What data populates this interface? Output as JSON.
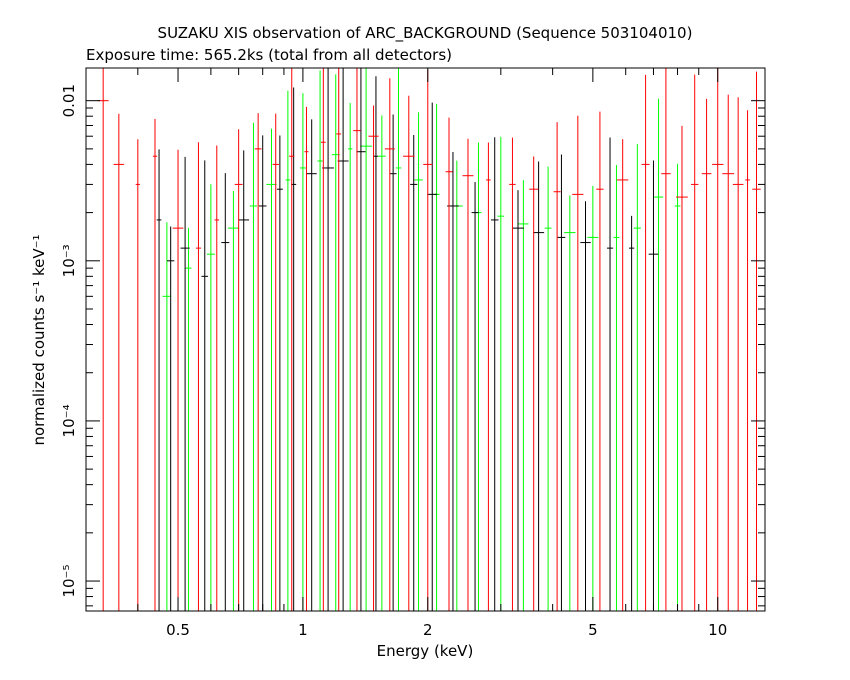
{
  "chart_data": {
    "type": "scatter",
    "title": "SUZAKU XIS observation of ARC_BACKGROUND (Sequence 503104010)",
    "subtitle": "Exposure time: 565.2ks (total from all detectors)",
    "xlabel": "Energy (keV)",
    "ylabel": "normalized counts s⁻¹ keV⁻¹",
    "xscale": "log",
    "yscale": "log",
    "xlim": [
      0.3,
      13
    ],
    "ylim": [
      6.5e-06,
      0.016
    ],
    "x_ticks": [
      {
        "value": 0.5,
        "label": "0.5"
      },
      {
        "value": 1,
        "label": "1"
      },
      {
        "value": 2,
        "label": "2"
      },
      {
        "value": 5,
        "label": "5"
      },
      {
        "value": 10,
        "label": "10"
      }
    ],
    "y_ticks": [
      {
        "value": 1e-05,
        "label": "10⁻⁵"
      },
      {
        "value": 0.0001,
        "label": "10⁻⁴"
      },
      {
        "value": 0.001,
        "label": "10⁻³"
      },
      {
        "value": 0.01,
        "label": "0.01"
      }
    ],
    "series": [
      {
        "color": "#000000",
        "energy": [
          0.45,
          0.48,
          0.52,
          0.58,
          0.65,
          0.72,
          0.8,
          0.88,
          0.95,
          1.05,
          1.15,
          1.25,
          1.38,
          1.5,
          1.65,
          1.85,
          2.05,
          2.3,
          2.6,
          2.9,
          3.3,
          3.7,
          4.2,
          4.8,
          5.5,
          6.2,
          7.0
        ],
        "counts": [
          0.0018,
          0.001,
          0.0012,
          0.0008,
          0.0013,
          0.0018,
          0.0022,
          0.0028,
          0.003,
          0.0035,
          0.0038,
          0.0042,
          0.0048,
          0.0045,
          0.0035,
          0.003,
          0.0026,
          0.0022,
          0.002,
          0.0018,
          0.0016,
          0.0015,
          0.0014,
          0.0013,
          0.0012,
          0.0012,
          0.0011
        ]
      },
      {
        "color": "#ff0000",
        "energy": [
          0.33,
          0.36,
          0.4,
          0.44,
          0.5,
          0.56,
          0.62,
          0.7,
          0.78,
          0.86,
          0.94,
          1.02,
          1.12,
          1.22,
          1.35,
          1.48,
          1.62,
          1.8,
          2.0,
          2.25,
          2.5,
          2.8,
          3.2,
          3.6,
          4.1,
          4.6,
          5.2,
          5.9,
          6.7,
          7.5,
          8.2,
          8.8,
          9.4,
          10.0,
          10.6,
          11.2,
          11.8,
          12.4
        ],
        "counts": [
          0.01,
          0.004,
          0.003,
          0.0045,
          0.0016,
          0.0012,
          0.0018,
          0.003,
          0.005,
          0.004,
          0.0045,
          0.0048,
          0.0055,
          0.0062,
          0.0065,
          0.006,
          0.005,
          0.0045,
          0.004,
          0.0036,
          0.0034,
          0.0032,
          0.003,
          0.0028,
          0.0027,
          0.0026,
          0.0028,
          0.0032,
          0.004,
          0.0035,
          0.0025,
          0.003,
          0.0035,
          0.004,
          0.0035,
          0.003,
          0.0032,
          0.0028
        ]
      },
      {
        "color": "#00ff00",
        "energy": [
          0.47,
          0.53,
          0.6,
          0.68,
          0.76,
          0.84,
          0.92,
          1.0,
          1.1,
          1.2,
          1.3,
          1.42,
          1.55,
          1.7,
          1.9,
          2.1,
          2.35,
          2.65,
          3.0,
          3.4,
          3.9,
          4.4,
          5.0,
          5.7,
          6.4,
          7.2,
          8.0
        ],
        "counts": [
          0.0006,
          0.0009,
          0.0011,
          0.0016,
          0.0022,
          0.003,
          0.0032,
          0.0038,
          0.0042,
          0.0046,
          0.005,
          0.0052,
          0.0045,
          0.0038,
          0.0032,
          0.0026,
          0.0022,
          0.002,
          0.0019,
          0.0017,
          0.0016,
          0.0015,
          0.0014,
          0.0014,
          0.0016,
          0.0025,
          0.0022
        ]
      }
    ]
  }
}
